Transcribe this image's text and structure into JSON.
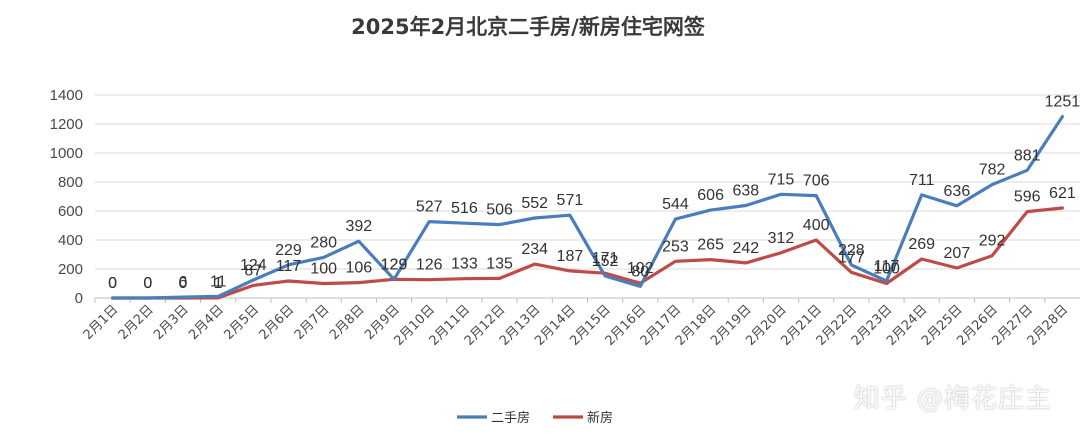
{
  "chart_data": {
    "type": "line",
    "title": "2025年2月北京二手房/新房住宅网签",
    "categories": [
      "2月1日",
      "2月2日",
      "2月3日",
      "2月4日",
      "2月5日",
      "2月6日",
      "2月7日",
      "2月8日",
      "2月9日",
      "2月10日",
      "2月11日",
      "2月12日",
      "2月13日",
      "2月14日",
      "2月15日",
      "2月16日",
      "2月17日",
      "2月18日",
      "2月19日",
      "2月20日",
      "2月21日",
      "2月22日",
      "2月23日",
      "2月24日",
      "2月25日",
      "2月26日",
      "2月27日",
      "2月28日"
    ],
    "series": [
      {
        "name": "二手房",
        "color": "#4a7ebb",
        "values": [
          0,
          0,
          6,
          11,
          124,
          229,
          280,
          392,
          129,
          527,
          516,
          506,
          552,
          571,
          152,
          80,
          544,
          606,
          638,
          715,
          706,
          228,
          117,
          711,
          636,
          782,
          881,
          1251
        ]
      },
      {
        "name": "新房",
        "color": "#be4b48",
        "values": [
          0,
          0,
          0,
          1,
          87,
          117,
          100,
          106,
          129,
          126,
          133,
          135,
          234,
          187,
          171,
          102,
          253,
          265,
          242,
          312,
          400,
          177,
          100,
          269,
          207,
          292,
          596,
          621
        ]
      }
    ],
    "ylim": [
      0,
      1400
    ],
    "yticks": [
      0,
      200,
      400,
      600,
      800,
      1000,
      1200,
      1400
    ],
    "grid": true,
    "legend": "bottom-center",
    "xlabel": "",
    "ylabel": ""
  },
  "watermark": "知乎 @梅花庄主"
}
